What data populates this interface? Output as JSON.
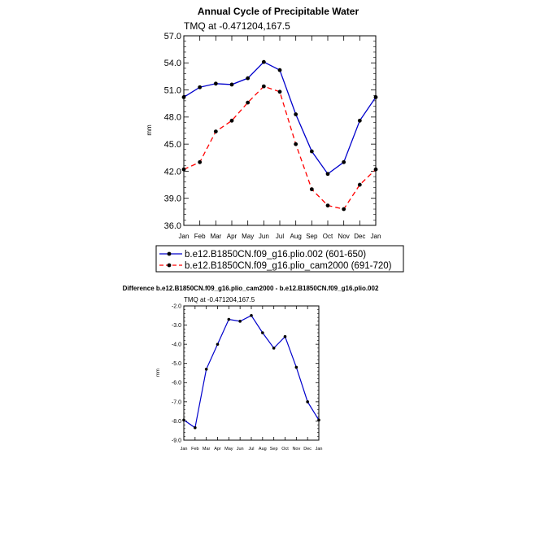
{
  "chart_data": [
    {
      "type": "line",
      "title": "Annual Cycle of Precipitable Water",
      "subtitle": "TMQ at -0.471204,167.5",
      "ylabel": "mm",
      "xlabel": "",
      "categories": [
        "Jan",
        "Feb",
        "Mar",
        "Apr",
        "May",
        "Jun",
        "Jul",
        "Aug",
        "Sep",
        "Oct",
        "Nov",
        "Dec",
        "Jan"
      ],
      "ylim": [
        36.0,
        57.0
      ],
      "yticks": [
        "36.0",
        "39.0",
        "42.0",
        "45.0",
        "48.0",
        "51.0",
        "54.0",
        "57.0"
      ],
      "legend_position": "bottom",
      "series": [
        {
          "name": "b.e12.B1850CN.f09_g16.plio.002 (601-650)",
          "color": "#0000cc",
          "dash": "solid",
          "values": [
            50.2,
            51.3,
            51.7,
            51.6,
            52.3,
            54.1,
            53.2,
            48.3,
            44.2,
            41.7,
            43.0,
            47.6,
            50.2
          ]
        },
        {
          "name": "b.e12.B1850CN.f09_g16.plio_cam2000 (691-720)",
          "color": "#ff0000",
          "dash": "dashed",
          "values": [
            42.2,
            43.0,
            46.4,
            47.6,
            49.6,
            51.4,
            50.8,
            45.0,
            40.0,
            38.2,
            37.8,
            40.5,
            42.2
          ]
        }
      ]
    },
    {
      "type": "line",
      "title": "Difference b.e12.B1850CN.f09_g16.plio_cam2000 - b.e12.B1850CN.f09_g16.plio.002",
      "subtitle": "TMQ at -0.471204,167.5",
      "ylabel": "mm",
      "xlabel": "",
      "categories": [
        "Jan",
        "Feb",
        "Mar",
        "Apr",
        "May",
        "Jun",
        "Jul",
        "Aug",
        "Sep",
        "Oct",
        "Nov",
        "Dec",
        "Jan"
      ],
      "ylim": [
        -9.0,
        -2.0
      ],
      "yticks": [
        "-9.0",
        "-8.0",
        "-7.0",
        "-6.0",
        "-5.0",
        "-4.0",
        "-3.0",
        "-2.0"
      ],
      "series": [
        {
          "color": "#0000cc",
          "dash": "solid",
          "values": [
            -7.95,
            -8.35,
            -5.3,
            -4.0,
            -2.7,
            -2.8,
            -2.5,
            -3.4,
            -4.2,
            -3.6,
            -5.2,
            -7.0,
            -7.95
          ]
        }
      ]
    }
  ]
}
